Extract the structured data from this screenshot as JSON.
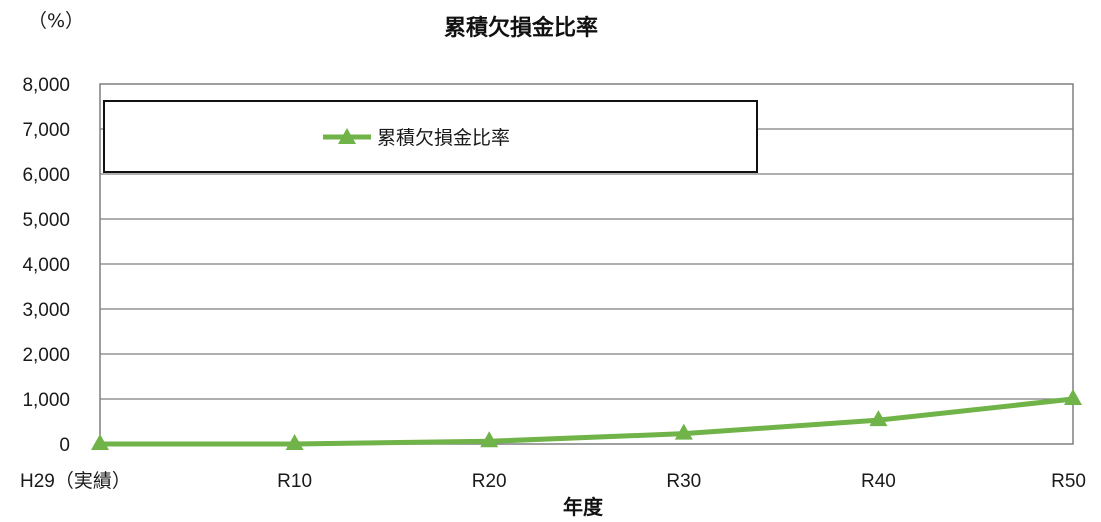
{
  "chart_data": {
    "type": "line",
    "title": "累積欠損金比率",
    "y_unit": "（%）",
    "xlabel": "年度",
    "categories": [
      "H29（実績）",
      "R10",
      "R20",
      "R30",
      "R40",
      "R50"
    ],
    "series": [
      {
        "name": "累積欠損金比率",
        "values": [
          0,
          0,
          60,
          230,
          530,
          1000
        ],
        "color": "#70b348",
        "marker": "triangle"
      }
    ],
    "ylim": [
      0,
      8000
    ],
    "yticks": [
      "0",
      "1,000",
      "2,000",
      "3,000",
      "4,000",
      "5,000",
      "6,000",
      "7,000",
      "8,000"
    ],
    "grid": true,
    "legend_position": "top-left"
  }
}
